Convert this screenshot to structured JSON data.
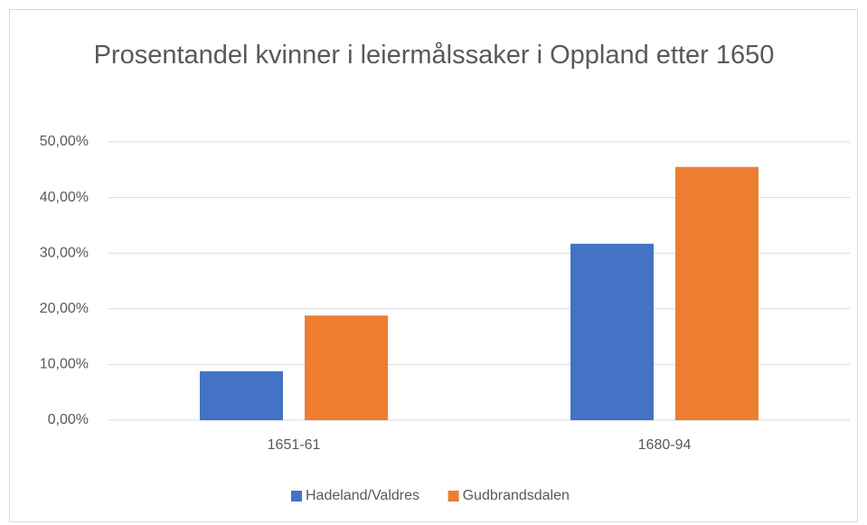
{
  "chart_data": {
    "type": "bar",
    "title": "Prosentandel kvinner i leiermålssaker i Oppland etter 1650",
    "categories": [
      "1651-61",
      "1680-94"
    ],
    "series": [
      {
        "name": "Hadeland/Valdres",
        "color": "#4472c4",
        "values": [
          8.8,
          31.7
        ]
      },
      {
        "name": "Gudbrandsdalen",
        "color": "#ed7d31",
        "values": [
          18.8,
          45.5
        ]
      }
    ],
    "ylim": [
      0,
      50
    ],
    "yticks": [
      {
        "value": 0,
        "label": "0,00%"
      },
      {
        "value": 10,
        "label": "10,00%"
      },
      {
        "value": 20,
        "label": "20,00%"
      },
      {
        "value": 30,
        "label": "30,00%"
      },
      {
        "value": 40,
        "label": "40,00%"
      },
      {
        "value": 50,
        "label": "50,00%"
      }
    ],
    "grid": true,
    "legend": "bottom"
  }
}
